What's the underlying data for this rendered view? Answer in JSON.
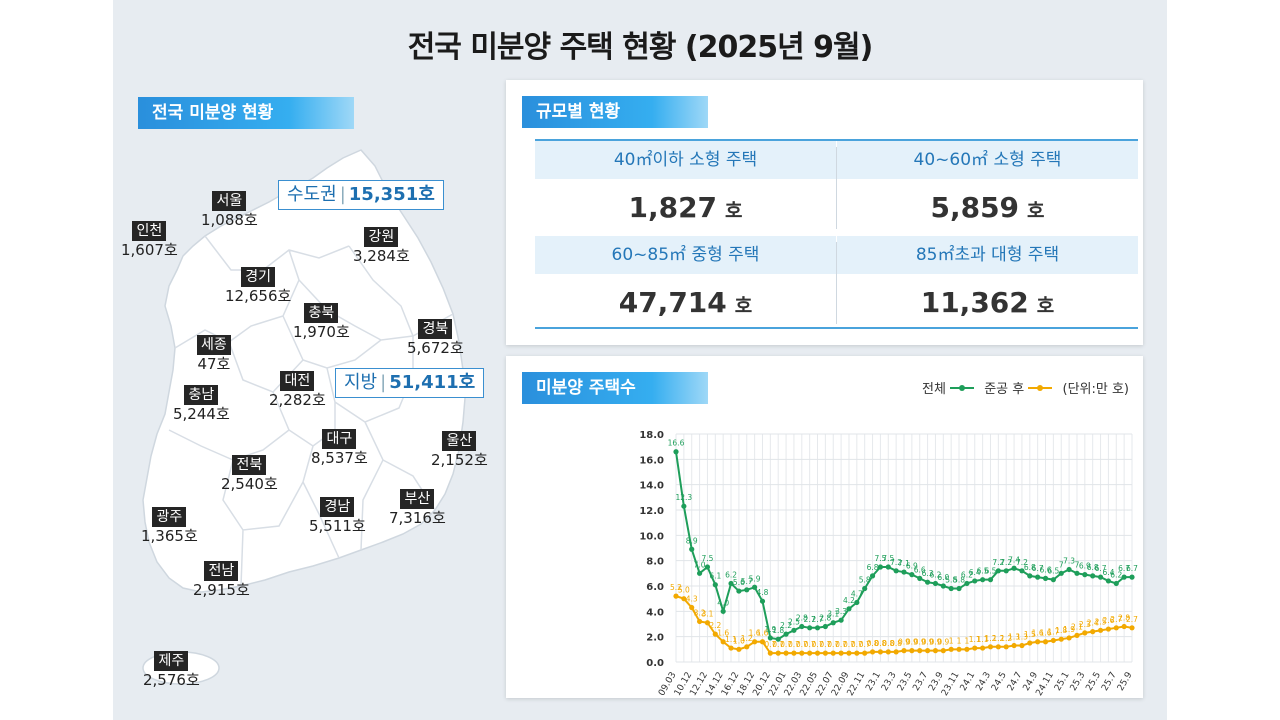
{
  "title": "전국 미분양 주택 현황  (2025년 9월)",
  "national": {
    "label": "전국 미분양 현황",
    "capital": {
      "name": "수도권",
      "value": "15,351호"
    },
    "local": {
      "name": "지방",
      "value": "51,411호"
    },
    "regions": [
      {
        "name": "서울",
        "value": "1,088호"
      },
      {
        "name": "인천",
        "value": "1,607호"
      },
      {
        "name": "경기",
        "value": "12,656호"
      },
      {
        "name": "강원",
        "value": "3,284호"
      },
      {
        "name": "충북",
        "value": "1,970호"
      },
      {
        "name": "경북",
        "value": "5,672호"
      },
      {
        "name": "세종",
        "value": "47호"
      },
      {
        "name": "충남",
        "value": "5,244호"
      },
      {
        "name": "대전",
        "value": "2,282호"
      },
      {
        "name": "대구",
        "value": "8,537호"
      },
      {
        "name": "울산",
        "value": "2,152호"
      },
      {
        "name": "전북",
        "value": "2,540호"
      },
      {
        "name": "경남",
        "value": "5,511호"
      },
      {
        "name": "부산",
        "value": "7,316호"
      },
      {
        "name": "광주",
        "value": "1,365호"
      },
      {
        "name": "전남",
        "value": "2,915호"
      },
      {
        "name": "제주",
        "value": "2,576호"
      }
    ]
  },
  "size": {
    "label": "규모별 현황",
    "cells": [
      {
        "head": "40㎡이하 소형 주택",
        "value": "1,827",
        "unit": "호"
      },
      {
        "head": "40~60㎡ 소형 주택",
        "value": "5,859",
        "unit": "호"
      },
      {
        "head": "60~85㎡ 중형 주택",
        "value": "47,714",
        "unit": "호"
      },
      {
        "head": "85㎡초과 대형 주택",
        "value": "11,362",
        "unit": "호"
      }
    ]
  },
  "trend": {
    "label": "미분양 주택수",
    "legend_total": "전체",
    "legend_after": "준공 후",
    "unit_note": "(단위:만 호)"
  },
  "chart_data": {
    "type": "line",
    "ylim": [
      0,
      18
    ],
    "yticks": [
      "0.0",
      "2.0",
      "4.0",
      "6.0",
      "8.0",
      "10.0",
      "12.0",
      "14.0",
      "16.0",
      "18.0"
    ],
    "xtick_labels": [
      "09.03",
      "10.12",
      "12.12",
      "14.12",
      "16.12",
      "18.12",
      "20.12",
      "22.01",
      "22.03",
      "22.05",
      "22.07",
      "22.09",
      "22.11",
      "23.1",
      "23.3",
      "23.5",
      "23.7",
      "23.9",
      "23.11",
      "24.1",
      "24.3",
      "24.5",
      "24.7",
      "24.9",
      "24.11",
      "25.1",
      "25.3",
      "25.5",
      "25.7",
      "25.9"
    ],
    "series": [
      {
        "name": "전체",
        "color": "#1e9e5a",
        "values": [
          16.6,
          12.3,
          8.9,
          7.0,
          7.5,
          6.1,
          4.0,
          6.2,
          5.6,
          5.7,
          5.9,
          4.8,
          1.9,
          1.8,
          2.2,
          2.5,
          2.8,
          2.7,
          2.7,
          2.8,
          3.1,
          3.3,
          4.2,
          4.7,
          5.8,
          6.8,
          7.5,
          7.5,
          7.2,
          7.1,
          6.9,
          6.6,
          6.3,
          6.2,
          6.0,
          5.8,
          5.8,
          6.2,
          6.4,
          6.5,
          6.5,
          7.2,
          7.2,
          7.4,
          7.2,
          6.8,
          6.7,
          6.6,
          6.5,
          7.0,
          7.3,
          7.0,
          6.9,
          6.8,
          6.7,
          6.4,
          6.2,
          6.7,
          6.7
        ],
        "labels": [
          "16.6",
          "12.3",
          "8.9",
          "7.0",
          "7.5",
          "6.1",
          "4.0",
          "6.2",
          "5.6",
          "5.7",
          "5.9",
          "4.8",
          "1.9",
          "1.8",
          "2.2",
          "2.5",
          "2.8",
          "2.7",
          "2.7",
          "2.8",
          "3.1",
          "3.3",
          "4.2",
          "4.7",
          "5.8",
          "6.8",
          "7.5",
          "7.5",
          "7.2",
          "7.1",
          "6.9",
          "6.6",
          "6.3",
          "6.2",
          "6.0",
          "5.8",
          "5.8",
          "6.2",
          "6.4",
          "6.5",
          "6.5",
          "7.2",
          "7.2",
          "7.4",
          "7.2",
          "6.8",
          "6.7",
          "6.6",
          "6.5",
          "7",
          "7.3",
          "7",
          "6.9",
          "6.8",
          "6.7",
          "6.4",
          "6.2",
          "6.7",
          "6.7"
        ]
      },
      {
        "name": "준공 후",
        "color": "#f2a900",
        "values": [
          5.2,
          5.0,
          4.3,
          3.2,
          3.1,
          2.2,
          1.6,
          1.1,
          1.0,
          1.2,
          1.6,
          1.6,
          0.7,
          0.7,
          0.7,
          0.7,
          0.7,
          0.7,
          0.7,
          0.7,
          0.7,
          0.7,
          0.7,
          0.7,
          0.7,
          0.8,
          0.8,
          0.8,
          0.8,
          0.9,
          0.9,
          0.9,
          0.9,
          0.9,
          0.9,
          1.0,
          1.0,
          1.0,
          1.1,
          1.1,
          1.2,
          1.2,
          1.2,
          1.3,
          1.3,
          1.5,
          1.6,
          1.6,
          1.7,
          1.8,
          1.9,
          2.1,
          2.3,
          2.4,
          2.5,
          2.6,
          2.7,
          2.8,
          2.7
        ],
        "labels": [
          "5.2",
          "5.0",
          "4.3",
          "3.2",
          "3.1",
          "2.2",
          "1.6",
          "1.1",
          "1.0",
          "1.2",
          "1.6",
          "1.6",
          "0.7",
          "0.7",
          "0.7",
          "0.7",
          "0.7",
          "0.7",
          "0.7",
          "0.7",
          "0.7",
          "0.7",
          "0.7",
          "0.7",
          "0.7",
          "0.8",
          "0.8",
          "0.8",
          "0.8",
          "0.9",
          "0.9",
          "0.9",
          "0.9",
          "0.9",
          "0.9",
          "1",
          "1",
          "1",
          "1.1",
          "1.1",
          "1.2",
          "1.2",
          "1.2",
          "1.3",
          "1.3",
          "1.5",
          "1.6",
          "1.6",
          "1.7",
          "1.8",
          "1.9",
          "2.1",
          "2.3",
          "2.4",
          "2.5",
          "2.6",
          "2.7",
          "2.8",
          "2.7"
        ]
      }
    ]
  }
}
